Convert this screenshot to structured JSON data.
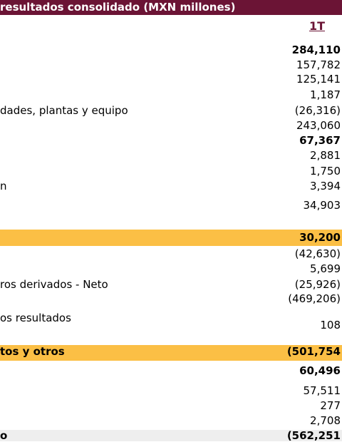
{
  "header": {
    "title": "resultados consolidado (MXN millones)",
    "period": "1T"
  },
  "table": {
    "rows": [
      {
        "value": "284,110"
      },
      {
        "value": "157,782"
      },
      {
        "value": "125,141"
      },
      {
        "value": "1,187"
      },
      {
        "label": "dades, plantas y equipo",
        "value": "(26,316)"
      },
      {
        "value": "243,060"
      },
      {
        "value": "67,367"
      },
      {
        "value": "2,881"
      },
      {
        "value": "1,750"
      },
      {
        "label": "n",
        "value": "3,394"
      },
      {
        "value": "34,903"
      },
      {
        "value": "30,200"
      },
      {
        "value": "(42,630)"
      },
      {
        "value": "5,699"
      },
      {
        "label": "ros derivados - Neto",
        "value": "(25,926)"
      },
      {
        "value": "(469,206)"
      },
      {
        "label": "os resultados",
        "value": "108"
      },
      {
        "label": "tos y otros",
        "value": "(501,754"
      },
      {
        "value": "60,496"
      },
      {
        "value": "57,511"
      },
      {
        "value": "277"
      },
      {
        "value": "2,708"
      },
      {
        "label": "o",
        "value": "(562,251"
      }
    ]
  }
}
